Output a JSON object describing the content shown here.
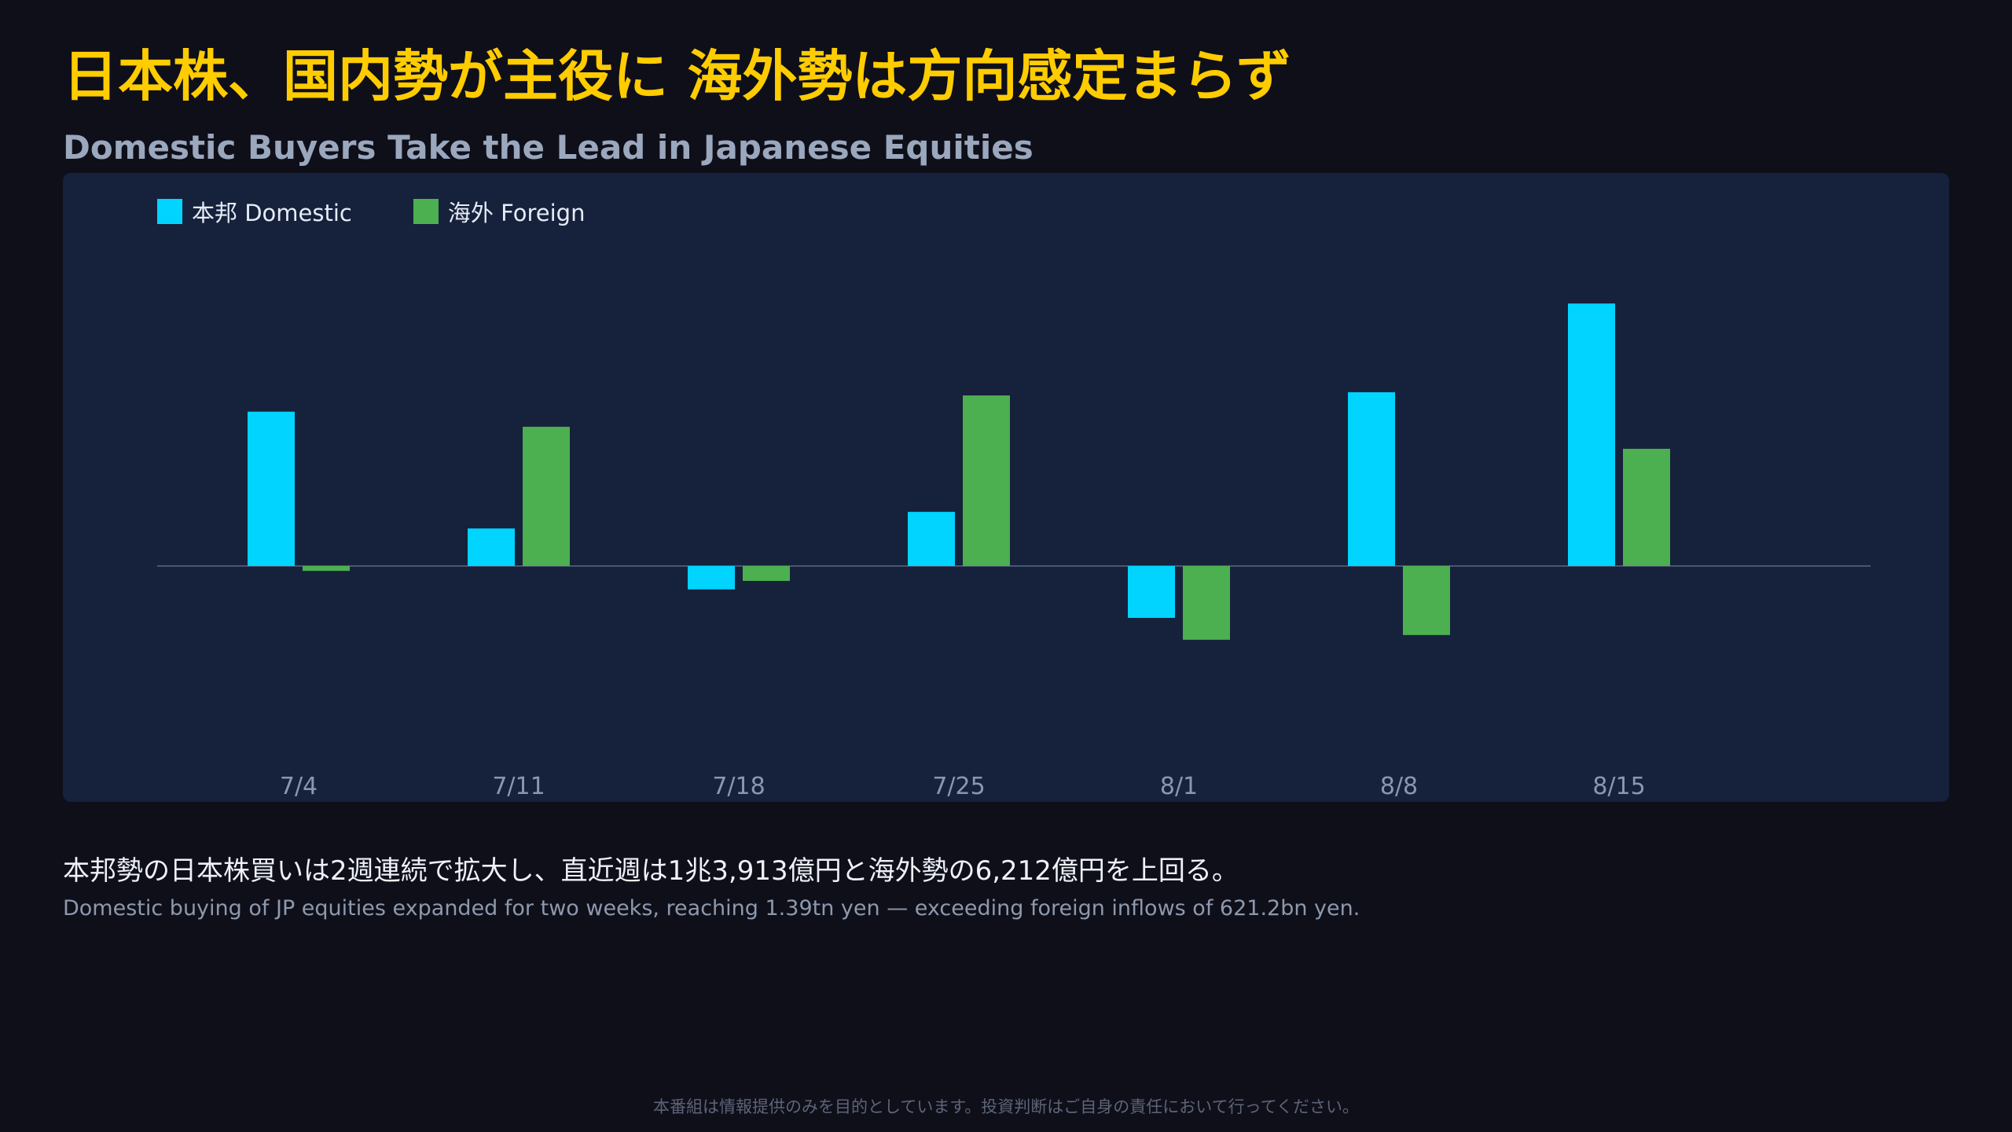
{
  "header": {
    "title": "日本株、国内勢が主役に 海外勢は方向感定まらず",
    "subtitle": "Domestic Buyers Take the Lead in Japanese Equities"
  },
  "legend": {
    "domestic": "本邦 Domestic",
    "foreign": "海外 Foreign"
  },
  "colors": {
    "domestic": "#00d4ff",
    "foreign": "#4caf50",
    "title": "#ffcc00",
    "background": "#0f0f1a",
    "panel": "#16213c"
  },
  "chart_data": {
    "type": "bar",
    "categories": [
      "7/4",
      "7/11",
      "7/18",
      "7/25",
      "8/1",
      "8/8",
      "8/15"
    ],
    "series": [
      {
        "name": "本邦 Domestic",
        "values": [
          8180,
          1990,
          -1240,
          2870,
          -2750,
          9210,
          13913
        ]
      },
      {
        "name": "海外 Foreign",
        "values": [
          -260,
          7380,
          -790,
          9040,
          -3910,
          -3660,
          6212
        ]
      }
    ],
    "ylim": [
      -10000,
      16000
    ],
    "zero_line": true,
    "grid": false,
    "legend_position": "top-left"
  },
  "summary": {
    "jp": "本邦勢の日本株買いは2週連続で拡大し、直近週は1兆3,913億円と海外勢の6,212億円を上回る。",
    "en": "Domestic buying of JP equities expanded for two weeks, reaching 1.39tn yen — exceeding foreign inflows of 621.2bn yen."
  },
  "footer": {
    "disclaimer": "本番組は情報提供のみを目的としています。投資判断はご自身の責任において行ってください。"
  }
}
